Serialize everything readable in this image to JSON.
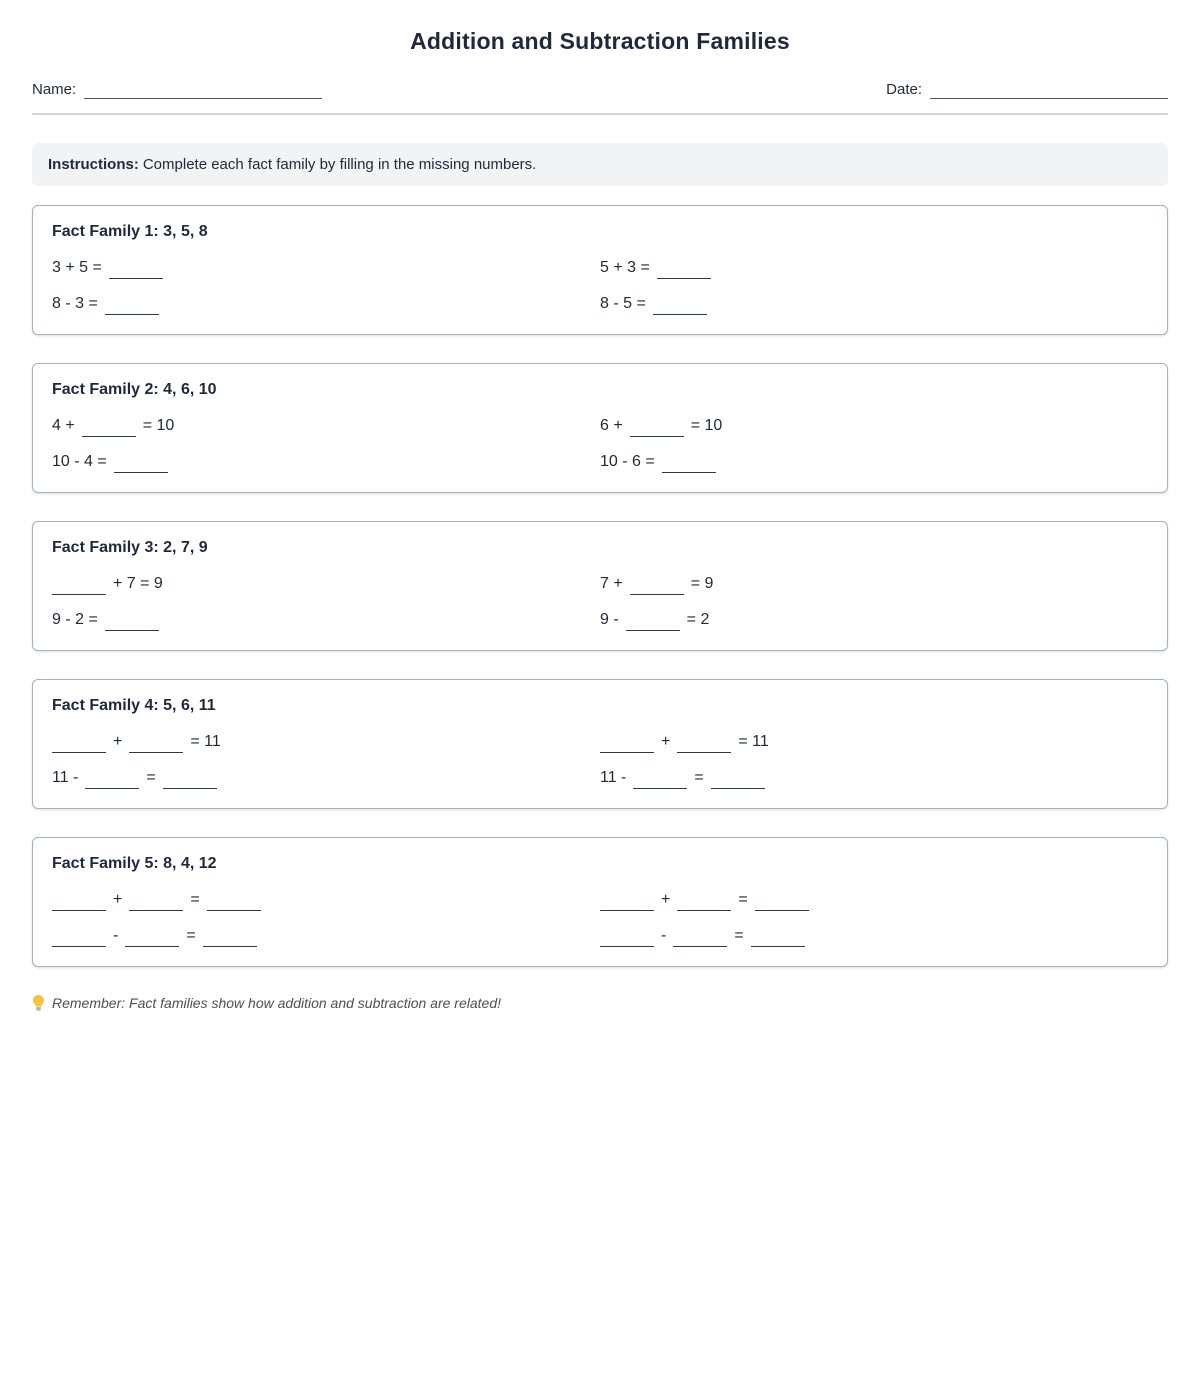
{
  "header": {
    "title": "Addition and Subtraction Families",
    "name_label": "Name:",
    "date_label": "Date:"
  },
  "instructions": {
    "label": "Instructions:",
    "text": "Complete each fact family by filling in the missing numbers."
  },
  "families": [
    {
      "title": "Fact Family 1: 3, 5, 8",
      "equations": [
        [
          "3 + 5 =",
          "_"
        ],
        [
          "5 + 3 =",
          "_"
        ],
        [
          "8 - 3 =",
          "_"
        ],
        [
          "8 - 5 =",
          "_"
        ]
      ]
    },
    {
      "title": "Fact Family 2: 4, 6, 10",
      "equations": [
        [
          "4 +",
          "_",
          "= 10"
        ],
        [
          "6 +",
          "_",
          "= 10"
        ],
        [
          "10 - 4 =",
          "_"
        ],
        [
          "10 - 6 =",
          "_"
        ]
      ]
    },
    {
      "title": "Fact Family 3: 2, 7, 9",
      "equations": [
        [
          "_",
          "+ 7 = 9"
        ],
        [
          "7 +",
          "_",
          "= 9"
        ],
        [
          "9 - 2 =",
          "_"
        ],
        [
          "9 -",
          "_",
          "= 2"
        ]
      ]
    },
    {
      "title": "Fact Family 4: 5, 6, 11",
      "equations": [
        [
          "_",
          "+",
          "_",
          "= 11"
        ],
        [
          "_",
          "+",
          "_",
          "= 11"
        ],
        [
          "11 -",
          "_",
          "=",
          "_"
        ],
        [
          "11 -",
          "_",
          "=",
          "_"
        ]
      ]
    },
    {
      "title": "Fact Family 5: 8, 4, 12",
      "equations": [
        [
          "_",
          "+",
          "_",
          "=",
          "_"
        ],
        [
          "_",
          "+",
          "_",
          "=",
          "_"
        ],
        [
          "_",
          "-",
          "_",
          "=",
          "_"
        ],
        [
          "_",
          "-",
          "_",
          "=",
          "_"
        ]
      ]
    }
  ],
  "footer": {
    "icon": "lightbulb-icon",
    "note": "Remember: Fact families show how addition and subtraction are related!"
  },
  "colors": {
    "heading": "#1e293b",
    "body_text": "#1f2937",
    "box_border": "#a9b0bb",
    "instructions_bg": "#f1f3f5",
    "divider": "#cbd5e1",
    "footer_text": "#495057",
    "bulb_yellow": "#f5c542",
    "bulb_base": "#9aa3ad"
  }
}
